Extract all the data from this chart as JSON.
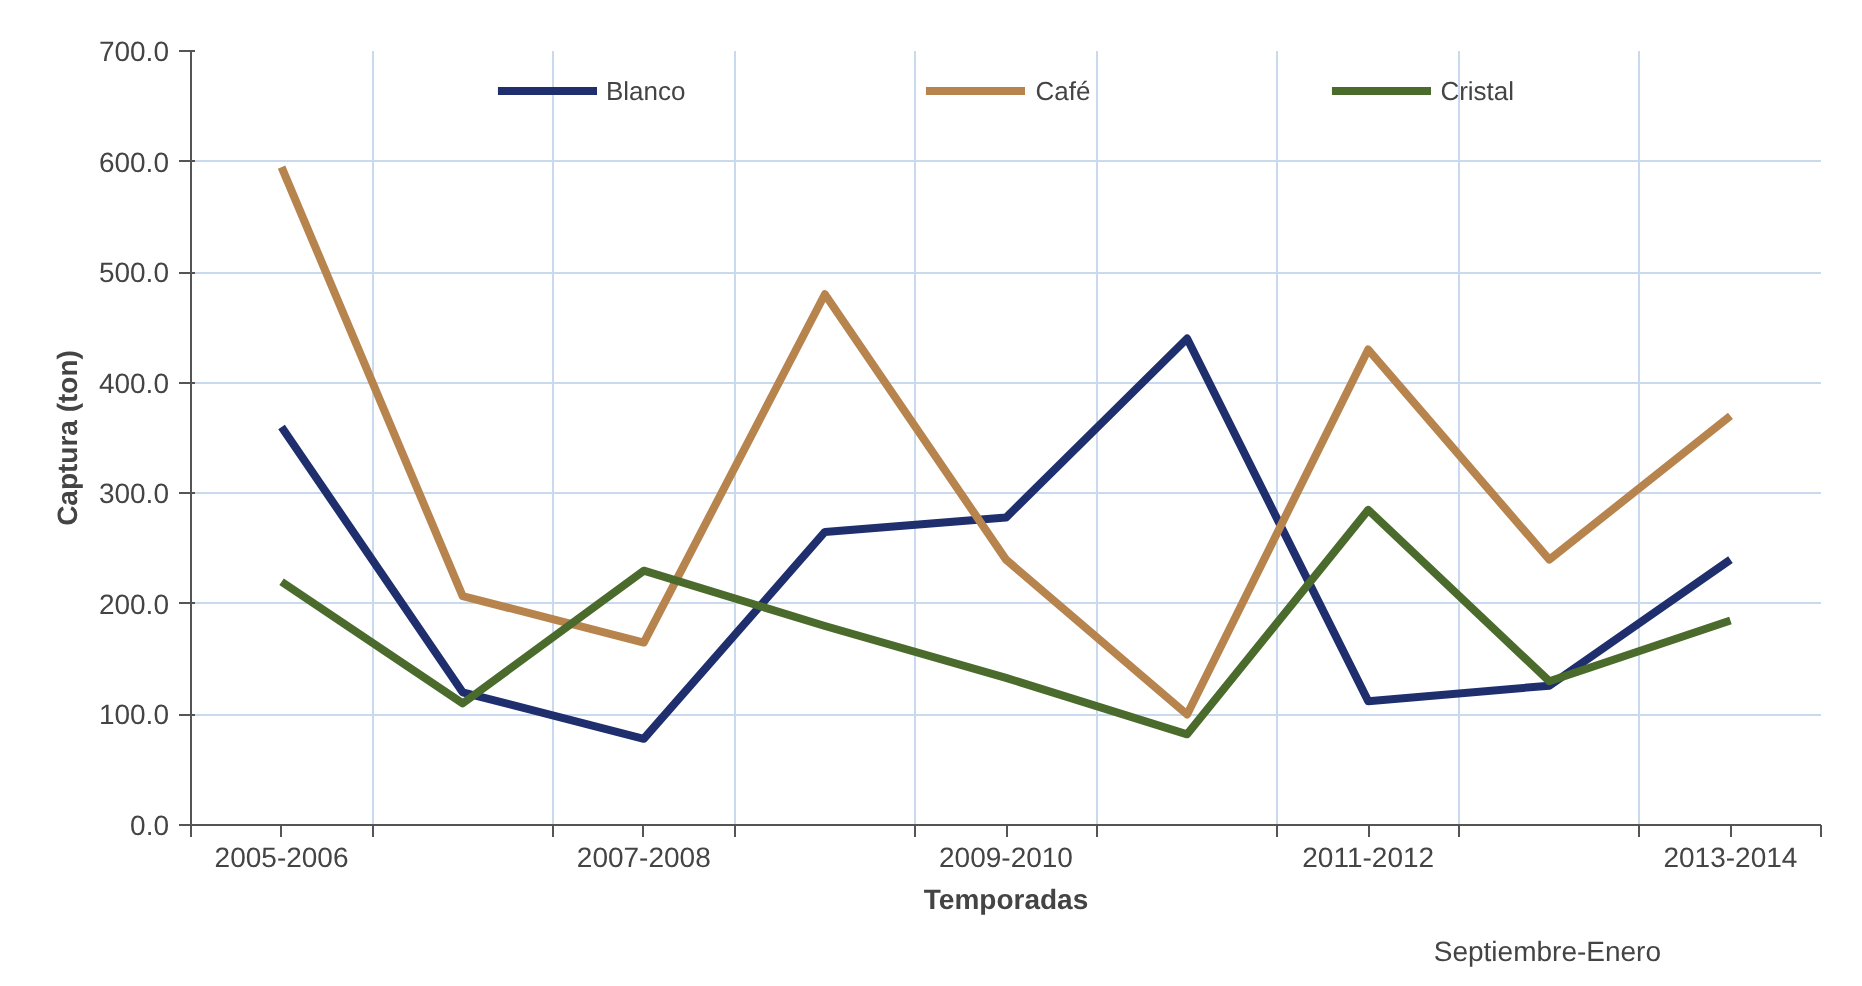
{
  "chart_data": {
    "type": "line",
    "xlabel": "Temporadas",
    "ylabel": "Captura (ton)",
    "categories": [
      "2005-2006",
      null,
      "2007-2008",
      null,
      "2009-2010",
      null,
      "2011-2012",
      null,
      "2013-2014"
    ],
    "series": [
      {
        "name": "Blanco",
        "color": "#1f2f6e",
        "values": [
          360,
          120,
          78,
          265,
          278,
          440,
          112,
          126,
          240
        ]
      },
      {
        "name": "Café",
        "color": "#b8844e",
        "values": [
          595,
          207,
          165,
          480,
          240,
          100,
          430,
          240,
          370
        ]
      },
      {
        "name": "Cristal",
        "color": "#4b6b2c",
        "values": [
          220,
          110,
          230,
          180,
          133,
          82,
          285,
          130,
          185
        ]
      }
    ],
    "ylim": [
      0,
      700
    ],
    "yticks": [
      {
        "value": 0,
        "label": "0.0"
      },
      {
        "value": 100,
        "label": "100.0"
      },
      {
        "value": 200,
        "label": "200.0"
      },
      {
        "value": 300,
        "label": "300.0"
      },
      {
        "value": 400,
        "label": "400.0"
      },
      {
        "value": 500,
        "label": "500.0"
      },
      {
        "value": 600,
        "label": "600.0"
      },
      {
        "value": 700,
        "label": "700.0"
      }
    ],
    "grid": true,
    "legend": "top",
    "marker": "none",
    "line_style": "solid",
    "annotations": [
      "Septiembre-Enero"
    ]
  }
}
